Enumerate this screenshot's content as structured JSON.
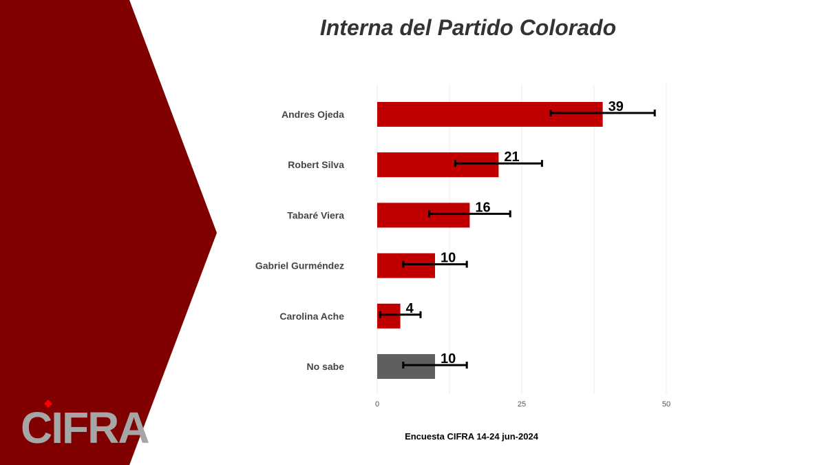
{
  "slide": {
    "title": "Interna del Partido Colorado",
    "footnote": "Encuesta CIFRA 14-24 jun-2024",
    "logo_text": "CIFRA",
    "colors": {
      "panel": "#800000",
      "bar": "#C00000",
      "bar_no_sabe": "#5F5F5F",
      "logo": "#A6A6A6",
      "logo_accent": "#FF0000"
    }
  },
  "chart_data": {
    "type": "bar",
    "orientation": "horizontal",
    "title": "Interna del Partido Colorado",
    "categories": [
      "Andres Ojeda",
      "Robert Silva",
      "Tabaré Viera",
      "Gabriel Gurméndez",
      "Carolina Ache",
      "No sabe"
    ],
    "values": [
      39,
      21,
      16,
      10,
      4,
      10
    ],
    "error_bars": [
      [
        30,
        48
      ],
      [
        13.5,
        28.5
      ],
      [
        9,
        23
      ],
      [
        4.5,
        15.5
      ],
      [
        0.5,
        7.5
      ],
      [
        4.5,
        15.5
      ]
    ],
    "xlim": [
      0,
      50
    ],
    "xticks": [
      0,
      25,
      50
    ],
    "grid": true,
    "legend": "none"
  }
}
